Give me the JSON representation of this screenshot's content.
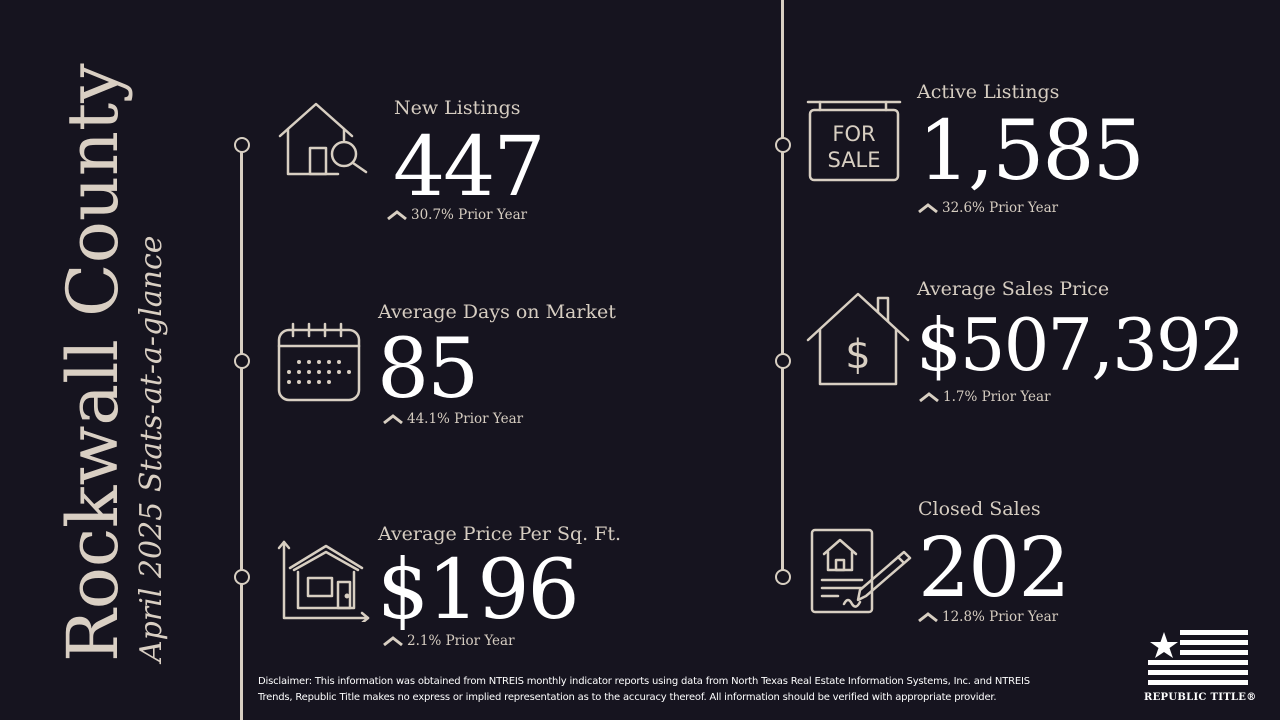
{
  "title": "Rockwall County",
  "subtitle": "April 2025 Stats-at-a-glance",
  "stats": [
    {
      "label": "New Listings",
      "value": "447",
      "change": "30.7% Prior Year",
      "icon": "house-search-icon"
    },
    {
      "label": "Average Days on Market",
      "value": "85",
      "change": "44.1% Prior Year",
      "icon": "calendar-icon"
    },
    {
      "label": "Average Price Per Sq. Ft.",
      "value": "$196",
      "change": "2.1% Prior Year",
      "icon": "house-chart-icon"
    },
    {
      "label": "Active Listings",
      "value": "1,585",
      "change": "32.6% Prior Year",
      "icon": "for-sale-sign-icon"
    },
    {
      "label": "Average Sales Price",
      "value": "$507,392",
      "change": "1.7% Prior Year",
      "icon": "house-dollar-icon"
    },
    {
      "label": "Closed Sales",
      "value": "202",
      "change": "12.8% Prior Year",
      "icon": "signed-contract-icon"
    }
  ],
  "for_sale_sign": {
    "line1": "FOR",
    "line2": "SALE"
  },
  "disclaimer": "Disclaimer: This information was obtained from NTREIS monthly indicator reports using data from North Texas Real Estate Information Systems, Inc. and NTREIS Trends, Republic Title makes no express or implied representation as to the accuracy thereof. All information should be verified with appropriate provider.",
  "logo_text": "REPUBLIC TITLE®",
  "colors": {
    "background": "#16141f",
    "accent": "#d8cfc2",
    "text": "#ffffff"
  }
}
